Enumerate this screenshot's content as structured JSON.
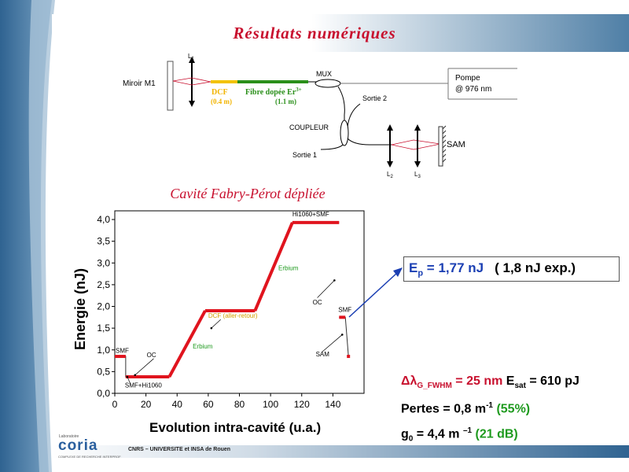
{
  "page": {
    "title": "Résultats numériques",
    "footer": "CNRS – UNIVERSITE et INSA de Rouen"
  },
  "logo": {
    "small": "Laboratoire",
    "main": "coria",
    "tagline": "COMPLEXE DE RECHERCHE INTERPROFESSIONNEL EN AEROTHERMOCHIMIE"
  },
  "diagram": {
    "mirror": "Miroir M1",
    "lens1": "L",
    "lens1_sub": "1",
    "dcf_label": "DCF",
    "dcf_len": "(0.4 m)",
    "fibre_label": "Fibre dopée Er",
    "fibre_sup": "3+",
    "fibre_len": "(1.1 m)",
    "mux": "MUX",
    "pompe": "Pompe",
    "pompe_wl": "@ 976 nm",
    "sortie2": "Sortie 2",
    "coupleur": "COUPLEUR",
    "sortie1": "Sortie 1",
    "sam": "SAM",
    "l2": "L",
    "l2_sub": "2",
    "l3": "L",
    "l3_sub": "3",
    "colors": {
      "dcf": "#f2c200",
      "erbium": "#2a8f1a",
      "beam": "#c8102e"
    }
  },
  "section": {
    "subtitle": "Cavité Fabry-Pérot dépliée"
  },
  "chart_data": {
    "type": "line",
    "title": "",
    "xlabel": "Evolution intra-cavité (u.a.)",
    "ylabel": "Energie (nJ)",
    "xlim": [
      0,
      160
    ],
    "ylim": [
      0,
      4.2
    ],
    "xticks": [
      0,
      20,
      40,
      60,
      80,
      100,
      120,
      140
    ],
    "yticks": [
      "0,0",
      "0,5",
      "1,0",
      "1,5",
      "2,0",
      "2,5",
      "3,0",
      "3,5",
      "4,0"
    ],
    "ytick_values": [
      0,
      0.5,
      1.0,
      1.5,
      2.0,
      2.5,
      3.0,
      3.5,
      4.0
    ],
    "series": [
      {
        "values_x": [
          0,
          7,
          7,
          35,
          58,
          90,
          114,
          144,
          144
        ],
        "values_y": [
          0.85,
          0.85,
          0.38,
          0.38,
          1.9,
          1.9,
          3.93,
          3.93,
          3.93
        ]
      },
      {
        "values_x": [
          144,
          148,
          150
        ],
        "values_y": [
          1.75,
          1.75,
          0.85
        ]
      }
    ],
    "color": "#e0141e",
    "annotations": [
      {
        "text": "SMF",
        "x": 0.5,
        "y": 0.93,
        "color": "#000"
      },
      {
        "text": "OC",
        "x": 20.5,
        "y": 0.83,
        "color": "#000"
      },
      {
        "text": "SMF+Hi1060",
        "x": 6.5,
        "y": 0.14,
        "color": "#000"
      },
      {
        "text": "Erbium",
        "x": 50,
        "y": 1.03,
        "color": "#1e9a1e"
      },
      {
        "text": "DCF (aller-retour)",
        "x": 60,
        "y": 1.74,
        "color": "#d4a000"
      },
      {
        "text": "Erbium",
        "x": 105,
        "y": 2.83,
        "color": "#1e9a1e"
      },
      {
        "text": "Hi1060+SMF",
        "x": 114,
        "y": 4.07,
        "color": "#000"
      },
      {
        "text": "OC",
        "x": 127,
        "y": 2.05,
        "color": "#000"
      },
      {
        "text": "SMF",
        "x": 143.5,
        "y": 1.87,
        "color": "#000"
      },
      {
        "text": "SAM",
        "x": 129,
        "y": 0.85,
        "color": "#000"
      }
    ]
  },
  "results": {
    "ep_main": "E",
    "ep_sub": "p",
    "ep_value": " = 1,77 nJ",
    "ep_exp": "( 1,8 nJ exp.)",
    "dl": "Δλ",
    "dl_sub": "G_FWHM",
    "dl_value": " = 25 nm ",
    "esat": "E",
    "esat_sub": "sat",
    "esat_value": " = 610 pJ",
    "pertes": "Pertes = 0,8 m",
    "pertes_sup": "-1",
    "pertes_pct": "(55%)",
    "g0": "g",
    "g0_sub": "0",
    "g0_value": " = 4,4 m ",
    "g0_sup": "–1",
    "g0_db": "(21 dB)"
  }
}
